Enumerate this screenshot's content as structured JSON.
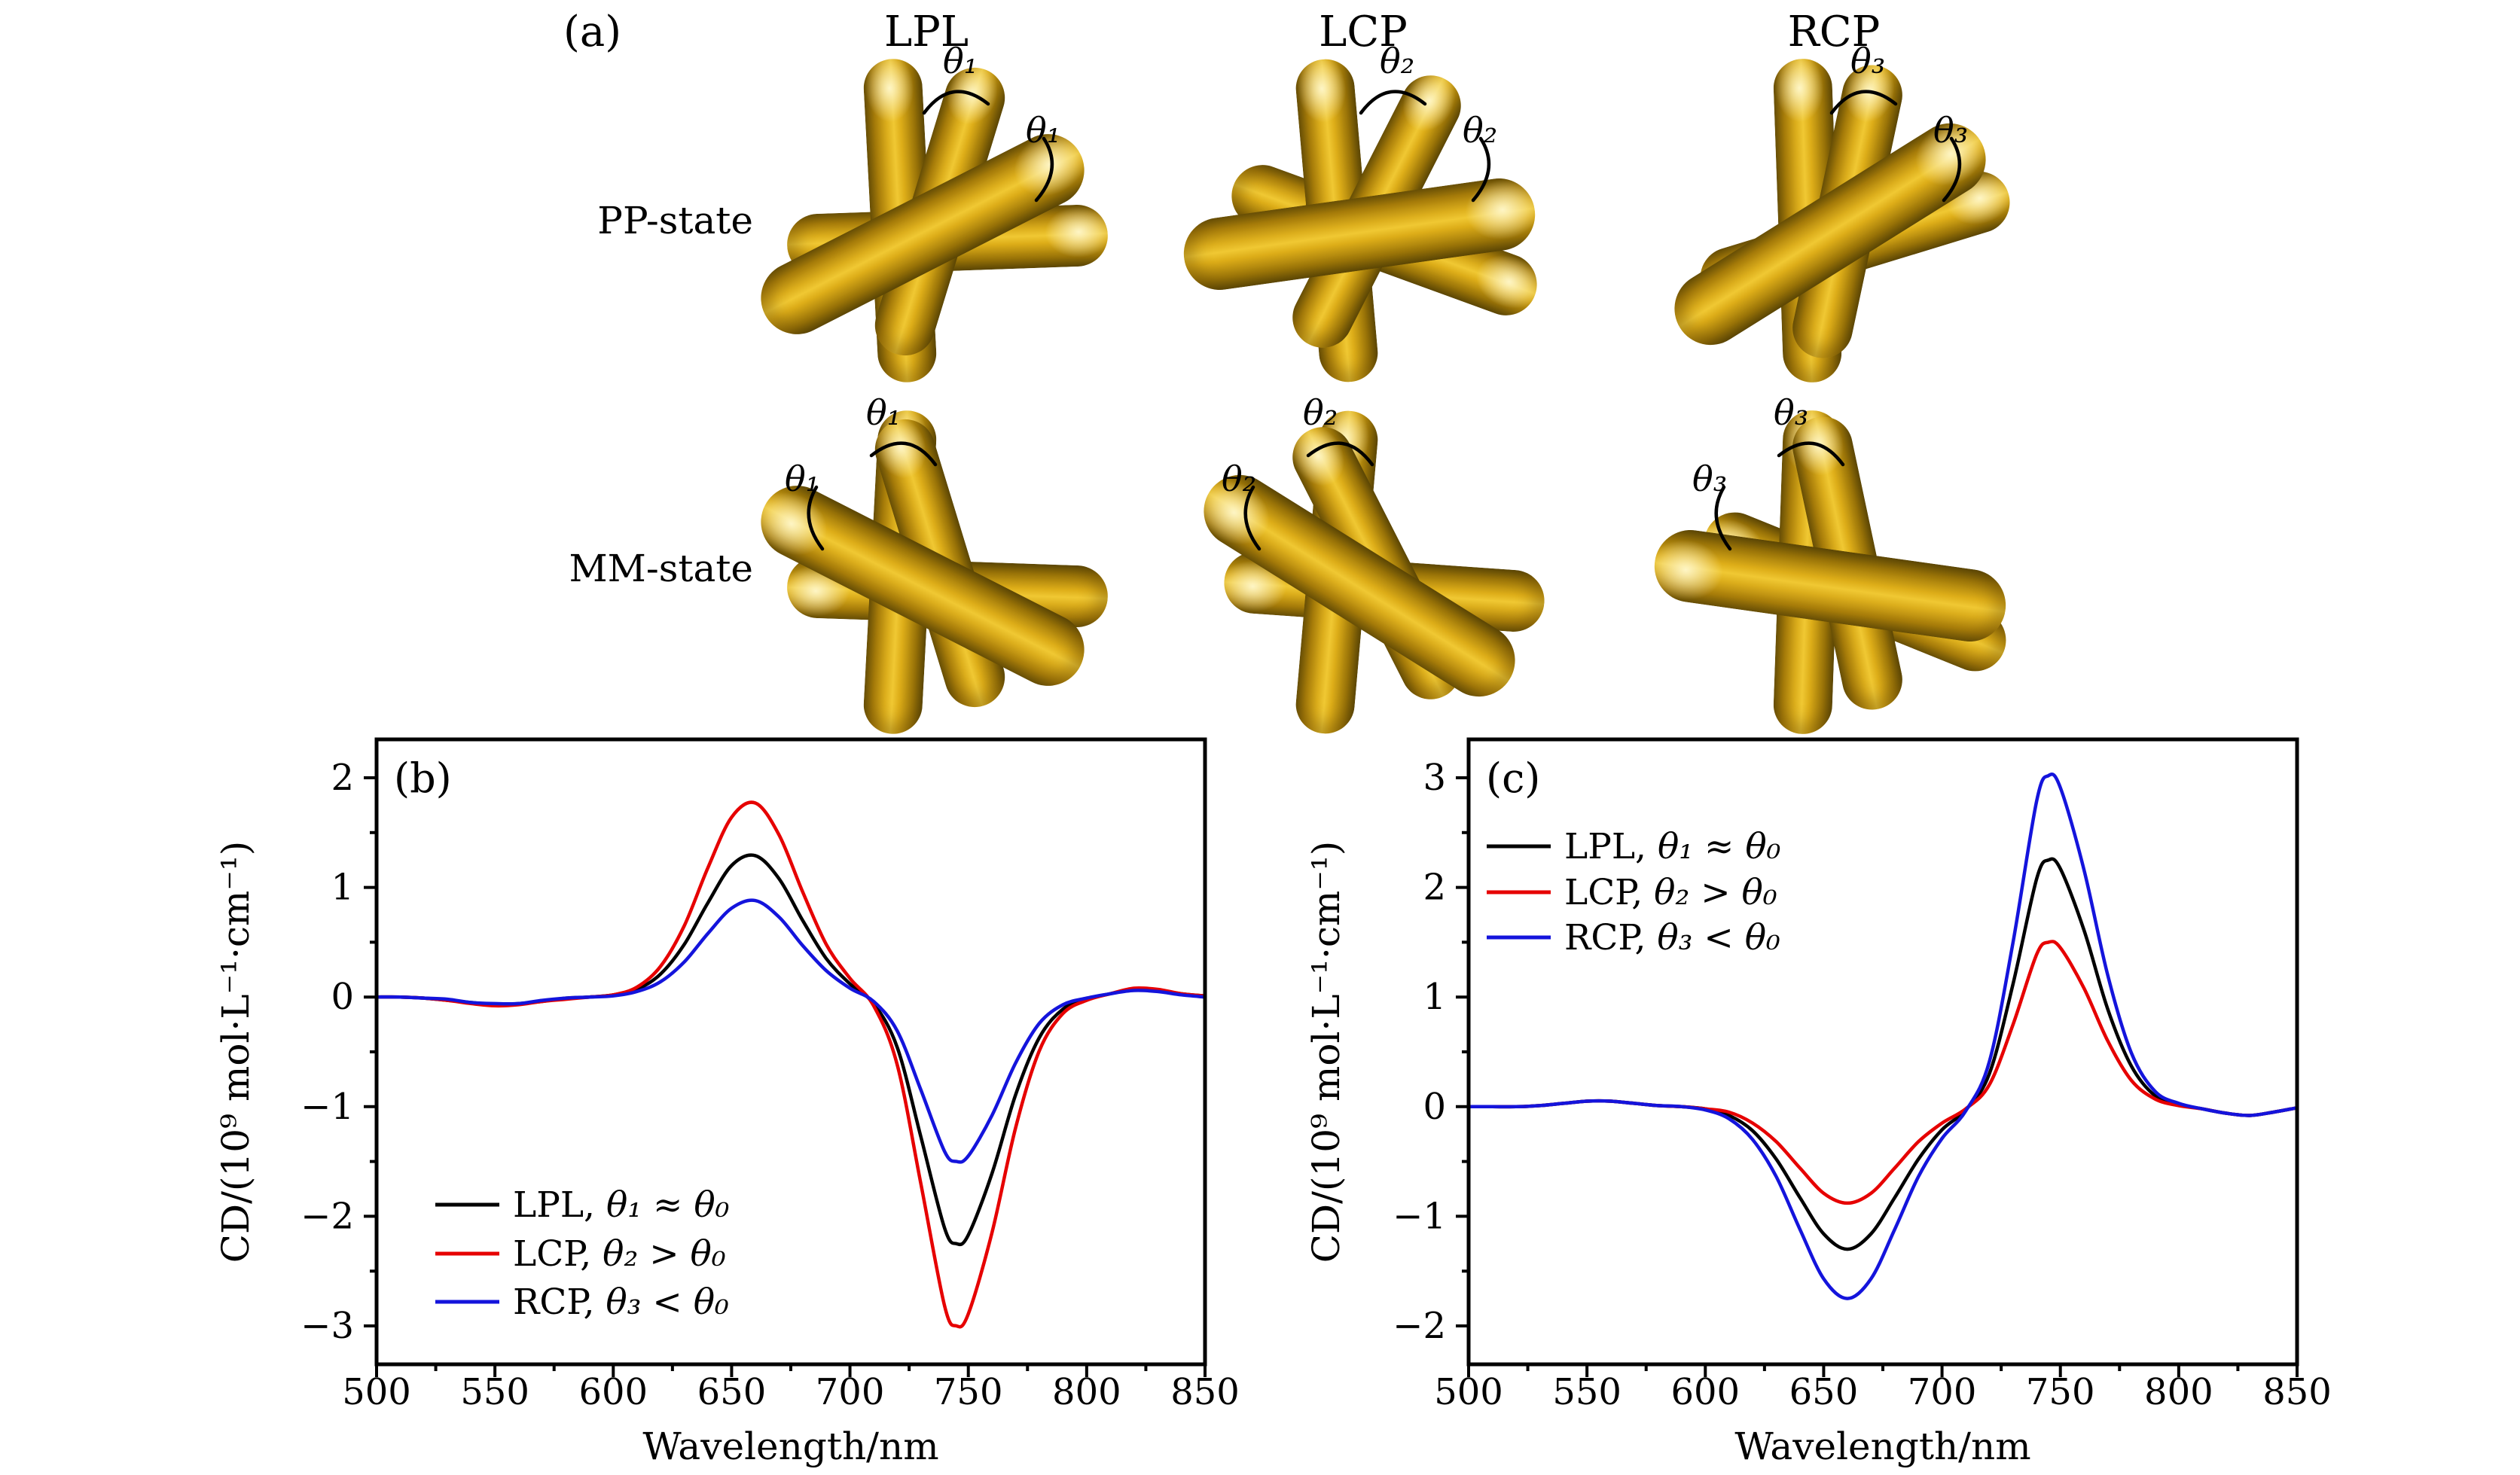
{
  "panel_a": {
    "label": "(a)",
    "column_headers": [
      {
        "label": "LPL"
      },
      {
        "label": "LCP"
      },
      {
        "label": "RCP"
      }
    ],
    "row_labels": [
      {
        "label": "PP-state"
      },
      {
        "label": "MM-state"
      }
    ],
    "rod_color": "#d9a514",
    "arc_color": "#000000",
    "clusters": [
      {
        "id": "pp-lpl",
        "row": "PP",
        "col": "LPL",
        "theta_label": "θ₁"
      },
      {
        "id": "pp-lcp",
        "row": "PP",
        "col": "LCP",
        "theta_label": "θ₂"
      },
      {
        "id": "pp-rcp",
        "row": "PP",
        "col": "RCP",
        "theta_label": "θ₃"
      },
      {
        "id": "mm-lpl",
        "row": "MM",
        "col": "LPL",
        "theta_label": "θ₁"
      },
      {
        "id": "mm-lcp",
        "row": "MM",
        "col": "LCP",
        "theta_label": "θ₂"
      },
      {
        "id": "mm-rcp",
        "row": "MM",
        "col": "RCP",
        "theta_label": "θ₃"
      }
    ]
  },
  "chart_data": [
    {
      "id": "b",
      "type": "line",
      "panel_label": "(b)",
      "title": "",
      "xlabel": "Wavelength/nm",
      "ylabel": "CD/(10⁹ mol·L⁻¹·cm⁻¹)",
      "xlim": [
        500,
        850
      ],
      "ylim": [
        -3.35,
        2.35
      ],
      "x_ticks": [
        500,
        550,
        600,
        650,
        700,
        750,
        800,
        850
      ],
      "y_ticks": [
        2,
        1,
        0,
        -1,
        -2,
        -3
      ],
      "x_minor_step": 25,
      "y_minor_step": 0.5,
      "grid": false,
      "legend_position": "lower-left",
      "x": [
        500,
        510,
        520,
        530,
        540,
        550,
        560,
        570,
        580,
        590,
        600,
        610,
        620,
        630,
        640,
        650,
        660,
        670,
        680,
        690,
        700,
        710,
        720,
        730,
        740,
        745,
        750,
        760,
        770,
        780,
        790,
        800,
        810,
        820,
        830,
        840,
        850
      ],
      "series": [
        {
          "name": "LPL",
          "label_prefix": "LPL, ",
          "label_math": "θ₁ ≈ θ₀",
          "color": "#000000",
          "values": [
            0,
            0,
            -0.01,
            -0.03,
            -0.05,
            -0.07,
            -0.06,
            -0.04,
            -0.01,
            0,
            0.02,
            0.07,
            0.21,
            0.48,
            0.86,
            1.2,
            1.29,
            1.08,
            0.7,
            0.35,
            0.12,
            -0.06,
            -0.46,
            -1.28,
            -2.11,
            -2.25,
            -2.17,
            -1.61,
            -0.89,
            -0.37,
            -0.11,
            -0.02,
            0.03,
            0.07,
            0.06,
            0.03,
            0.01
          ]
        },
        {
          "name": "LCP",
          "label_prefix": "LCP, ",
          "label_math": "θ₂ > θ₀",
          "color": "#e60000",
          "values": [
            0,
            0,
            -0.01,
            -0.03,
            -0.06,
            -0.08,
            -0.07,
            -0.04,
            -0.02,
            0,
            0.02,
            0.09,
            0.28,
            0.65,
            1.18,
            1.64,
            1.77,
            1.48,
            0.96,
            0.48,
            0.17,
            -0.08,
            -0.62,
            -1.71,
            -2.82,
            -3.0,
            -2.89,
            -2.15,
            -1.19,
            -0.49,
            -0.15,
            -0.03,
            0.03,
            0.08,
            0.07,
            0.03,
            0.01
          ]
        },
        {
          "name": "RCP",
          "label_prefix": "RCP, ",
          "label_math": "θ₃ < θ₀",
          "color": "#1414dc",
          "values": [
            0,
            0,
            -0.01,
            -0.02,
            -0.05,
            -0.06,
            -0.06,
            -0.03,
            -0.01,
            0,
            0.01,
            0.05,
            0.14,
            0.32,
            0.58,
            0.81,
            0.88,
            0.73,
            0.47,
            0.24,
            0.08,
            -0.04,
            -0.31,
            -0.85,
            -1.41,
            -1.5,
            -1.45,
            -1.08,
            -0.6,
            -0.24,
            -0.07,
            -0.01,
            0.03,
            0.06,
            0.05,
            0.02,
            0
          ]
        }
      ]
    },
    {
      "id": "c",
      "type": "line",
      "panel_label": "(c)",
      "title": "",
      "xlabel": "Wavelength/nm",
      "ylabel": "CD/(10⁹ mol·L⁻¹·cm⁻¹)",
      "xlim": [
        500,
        850
      ],
      "ylim": [
        -2.35,
        3.35
      ],
      "x_ticks": [
        500,
        550,
        600,
        650,
        700,
        750,
        800,
        850
      ],
      "y_ticks": [
        3,
        2,
        1,
        0,
        -1,
        -2
      ],
      "x_minor_step": 25,
      "y_minor_step": 0.5,
      "grid": false,
      "legend_position": "upper-left",
      "x": [
        500,
        510,
        520,
        530,
        540,
        550,
        560,
        570,
        580,
        590,
        600,
        610,
        620,
        630,
        640,
        650,
        660,
        670,
        680,
        690,
        700,
        710,
        720,
        730,
        740,
        745,
        750,
        760,
        770,
        780,
        790,
        800,
        810,
        820,
        830,
        840,
        850
      ],
      "series": [
        {
          "name": "LPL",
          "label_prefix": "LPL, ",
          "label_math": "θ₁ ≈ θ₀",
          "color": "#000000",
          "values": [
            0,
            0,
            0,
            0.01,
            0.03,
            0.05,
            0.05,
            0.03,
            0.01,
            0,
            -0.02,
            -0.08,
            -0.22,
            -0.48,
            -0.83,
            -1.16,
            -1.3,
            -1.16,
            -0.83,
            -0.48,
            -0.21,
            -0.03,
            0.3,
            1.12,
            2.08,
            2.25,
            2.17,
            1.61,
            0.89,
            0.37,
            0.1,
            0.02,
            -0.02,
            -0.06,
            -0.08,
            -0.05,
            -0.01
          ]
        },
        {
          "name": "LCP",
          "label_prefix": "LCP, ",
          "label_math": "θ₂ > θ₀",
          "color": "#e60000",
          "values": [
            0,
            0,
            0,
            0.01,
            0.03,
            0.05,
            0.05,
            0.03,
            0.01,
            0,
            -0.02,
            -0.05,
            -0.15,
            -0.32,
            -0.56,
            -0.79,
            -0.88,
            -0.79,
            -0.56,
            -0.32,
            -0.15,
            -0.02,
            0.2,
            0.75,
            1.39,
            1.5,
            1.45,
            1.08,
            0.6,
            0.24,
            0.07,
            0.01,
            -0.02,
            -0.06,
            -0.08,
            -0.05,
            -0.01
          ]
        },
        {
          "name": "RCP",
          "label_prefix": "RCP, ",
          "label_math": "θ₃ < θ₀",
          "color": "#1414dc",
          "values": [
            0,
            0,
            0,
            0.01,
            0.03,
            0.05,
            0.05,
            0.03,
            0.01,
            0,
            -0.03,
            -0.11,
            -0.3,
            -0.64,
            -1.12,
            -1.57,
            -1.75,
            -1.57,
            -1.12,
            -0.64,
            -0.29,
            -0.04,
            0.41,
            1.5,
            2.79,
            3.02,
            2.91,
            2.16,
            1.2,
            0.49,
            0.14,
            0.03,
            -0.02,
            -0.06,
            -0.08,
            -0.05,
            -0.01
          ]
        }
      ]
    }
  ]
}
